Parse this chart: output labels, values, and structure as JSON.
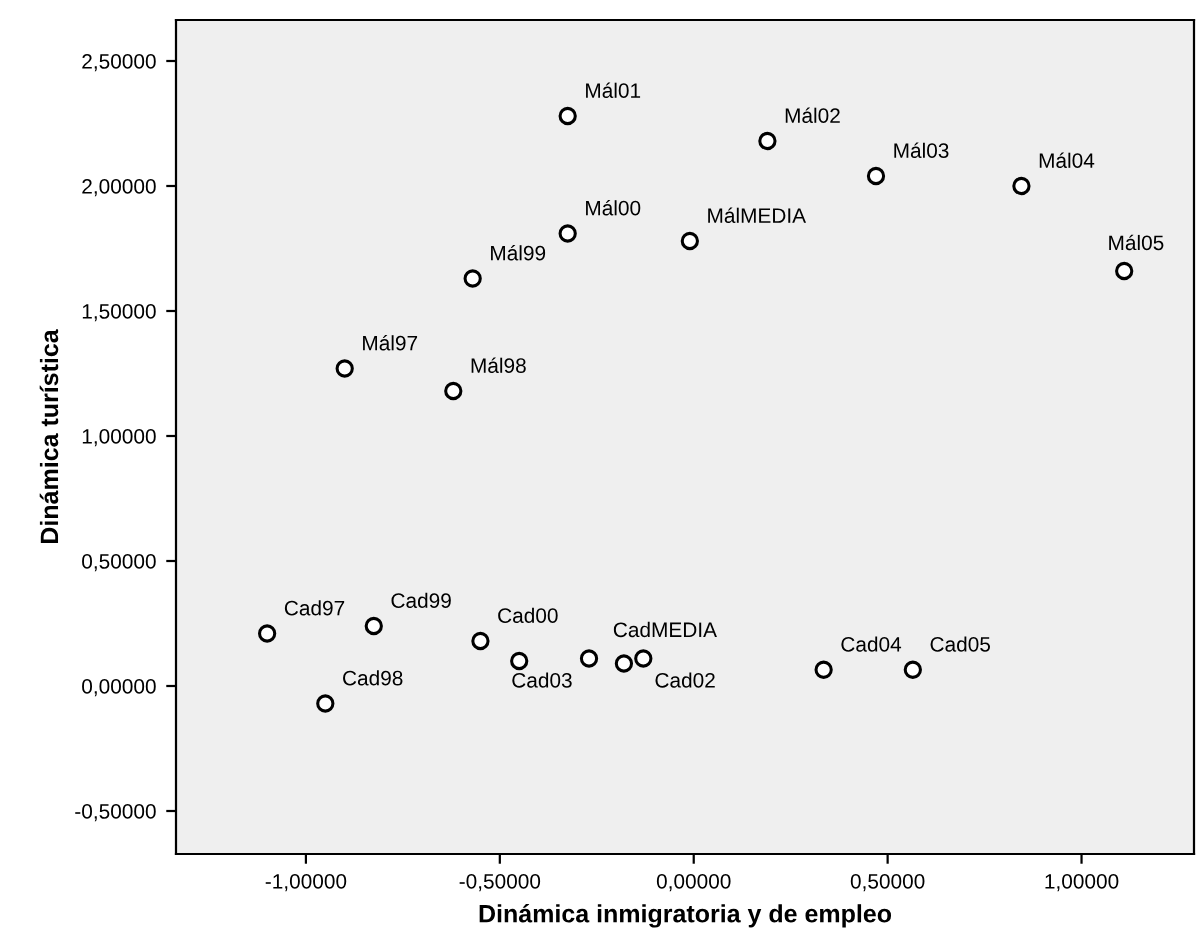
{
  "chart_data": {
    "type": "scatter",
    "xlabel": "Dinámica inmigratoria y de empleo",
    "ylabel": "Dinámica turística",
    "series": [
      {
        "color": "#000000",
        "x": [
          -0.325,
          0.19,
          0.47,
          0.845,
          1.11,
          -0.325,
          -0.01,
          -0.57,
          -0.9,
          -0.62,
          -1.1,
          -0.825,
          -0.55,
          -0.45,
          -0.27,
          -0.18,
          -0.13,
          0.335,
          0.565,
          -0.95
        ],
        "values": [
          2.28,
          2.18,
          2.04,
          2.0,
          1.66,
          1.81,
          1.78,
          1.63,
          1.27,
          1.18,
          0.21,
          0.24,
          0.18,
          0.1,
          0.11,
          0.09,
          0.11,
          0.065,
          0.065,
          -0.07
        ]
      }
    ],
    "annotations": [
      {
        "text": "Mál01",
        "x": -0.325,
        "y": 2.28
      },
      {
        "text": "Mál02",
        "x": 0.19,
        "y": 2.18
      },
      {
        "text": "Mál03",
        "x": 0.47,
        "y": 2.04
      },
      {
        "text": "Mál04",
        "x": 0.845,
        "y": 2.0
      },
      {
        "text": "Mál05",
        "x": 1.11,
        "y": 1.66
      },
      {
        "text": "Mál00",
        "x": -0.325,
        "y": 1.81
      },
      {
        "text": "MálMEDIA",
        "x": -0.01,
        "y": 1.78
      },
      {
        "text": "Mál99",
        "x": -0.57,
        "y": 1.63
      },
      {
        "text": "Mál97",
        "x": -0.9,
        "y": 1.27
      },
      {
        "text": "Mál98",
        "x": -0.62,
        "y": 1.18
      },
      {
        "text": "Cad97",
        "x": -1.1,
        "y": 0.21
      },
      {
        "text": "Cad99",
        "x": -0.825,
        "y": 0.24
      },
      {
        "text": "Cad00",
        "x": -0.55,
        "y": 0.18
      },
      {
        "text": "Cad03",
        "x": -0.27,
        "y": 0.11
      },
      {
        "text": "Cad02",
        "x": -0.13,
        "y": 0.11
      },
      {
        "text": "CadMEDIA",
        "x": -0.18,
        "y": 0.09
      },
      {
        "text": "Cad04",
        "x": 0.335,
        "y": 0.065
      },
      {
        "text": "Cad05",
        "x": 0.565,
        "y": 0.065
      },
      {
        "text": "Cad98",
        "x": -0.95,
        "y": -0.07
      }
    ],
    "xlim": [
      -1.335,
      1.29
    ],
    "ylim": [
      -0.672,
      2.664
    ],
    "xticks": [
      {
        "value": -1,
        "label": "-1,00000"
      },
      {
        "value": -0.5,
        "label": "-0,50000"
      },
      {
        "value": 0,
        "label": "0,00000"
      },
      {
        "value": 0.5,
        "label": "0,50000"
      },
      {
        "value": 1,
        "label": "1,00000"
      }
    ],
    "yticks": [
      {
        "value": -0.5,
        "label": "-0,50000"
      },
      {
        "value": 0,
        "label": "0,00000"
      },
      {
        "value": 0.5,
        "label": "0,50000"
      },
      {
        "value": 1,
        "label": "1,00000"
      },
      {
        "value": 1.5,
        "label": "1,50000"
      },
      {
        "value": 2,
        "label": "2,00000"
      },
      {
        "value": 2.5,
        "label": "2,50000"
      }
    ],
    "marker": "circle",
    "grid": false
  }
}
